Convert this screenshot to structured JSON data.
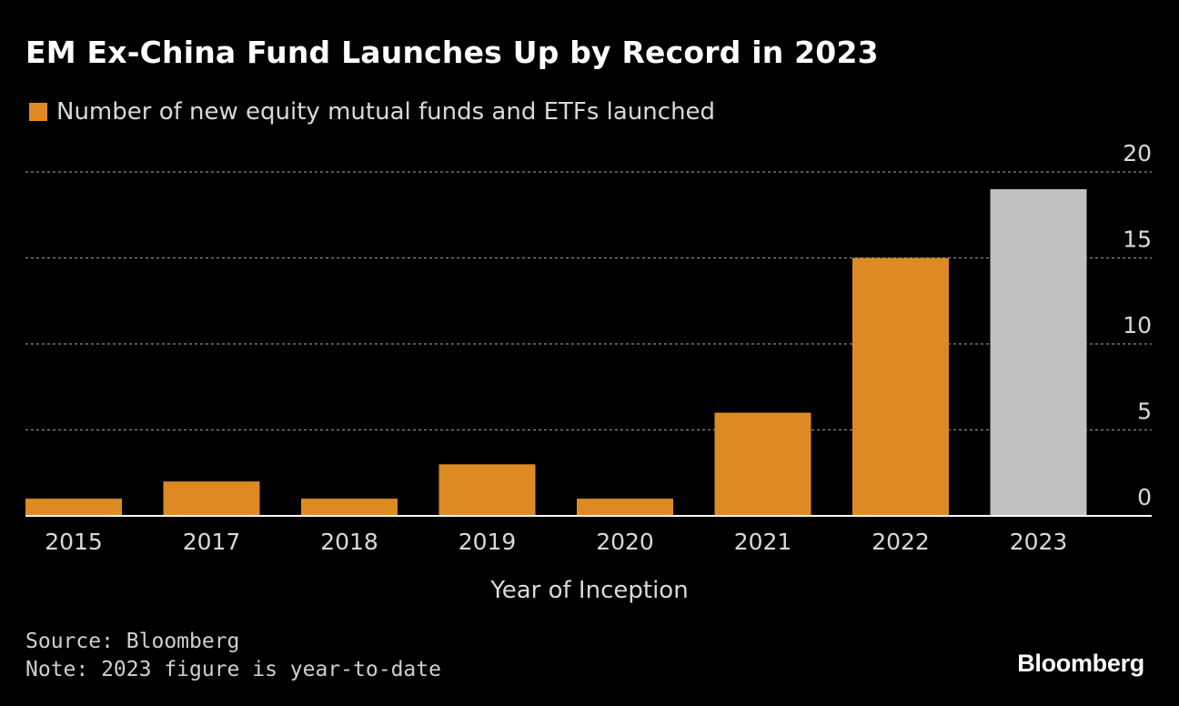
{
  "header": {
    "title": "EM Ex-China Fund Launches Up by Record in 2023"
  },
  "legend": {
    "label": "Number of new equity mutual funds and ETFs launched",
    "color": "#dd8a25"
  },
  "footer": {
    "source": "Source: Bloomberg",
    "note": "Note: 2023 figure is year-to-date",
    "brand": "Bloomberg"
  },
  "colors": {
    "background": "#000000",
    "bar": "#dd8a25",
    "highlight_bar": "#c0c0c0",
    "grid": "#8a8a8a",
    "axis": "#ffffff",
    "tick_text": "#d9d9d9"
  },
  "chart_data": {
    "type": "bar",
    "title": "EM Ex-China Fund Launches Up by Record in 2023",
    "xlabel": "Year of Inception",
    "ylabel": "",
    "categories": [
      "2015",
      "2017",
      "2018",
      "2019",
      "2020",
      "2021",
      "2022",
      "2023"
    ],
    "series": [
      {
        "name": "Number of new equity mutual funds and ETFs launched",
        "values": [
          1,
          2,
          1,
          3,
          1,
          6,
          15,
          19
        ]
      }
    ],
    "highlight_category": "2023",
    "ylim": [
      0,
      20
    ],
    "yticks": [
      0,
      5,
      10,
      15,
      20
    ],
    "ytick_labels": [
      "0",
      "5",
      "10",
      "15",
      "20"
    ],
    "grid": true,
    "y_axis_side": "right",
    "legend_position": "top-left"
  }
}
